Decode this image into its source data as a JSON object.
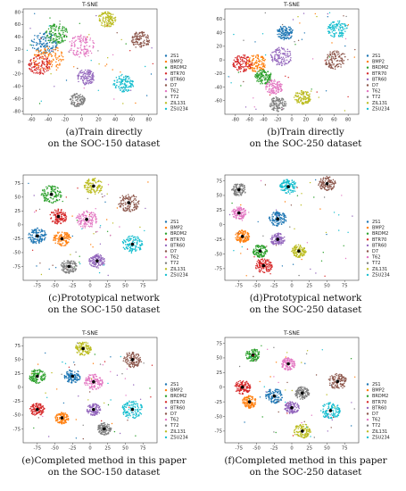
{
  "colors": [
    "#1f77b4",
    "#ff7f0e",
    "#2ca02c",
    "#d62728",
    "#9467bd",
    "#8c564b",
    "#e377c2",
    "#7f7f7f",
    "#bcbd22",
    "#17becf"
  ],
  "legend_labels": [
    "2S1",
    "BMP2",
    "BRDM2",
    "BTR70",
    "BTR60",
    "D7",
    "T62",
    "T72",
    "ZIL131",
    "ZSU234"
  ],
  "chart_data": [
    {
      "type": "scatter",
      "title": "T-SNE",
      "caption_line1": "(a)Train directly",
      "caption_line2": "on the SOC-150 dataset",
      "xlim": [
        -70,
        90
      ],
      "ylim": [
        -85,
        85
      ],
      "xticks": [
        -60,
        -40,
        -20,
        0,
        20,
        40,
        60,
        80
      ],
      "yticks": [
        -80,
        -60,
        -40,
        -20,
        0,
        20,
        40,
        60,
        80
      ],
      "prototypes": false,
      "clusters": [
        {
          "series": "2S1",
          "x": -45,
          "y": 30,
          "r": 20
        },
        {
          "series": "BMP2",
          "x": -40,
          "y": 5,
          "r": 24
        },
        {
          "series": "BRDM2",
          "x": -30,
          "y": 45,
          "r": 18
        },
        {
          "series": "BTR70",
          "x": -50,
          "y": -5,
          "r": 18
        },
        {
          "series": "BTR60",
          "x": 5,
          "y": -25,
          "r": 14
        },
        {
          "series": "D7",
          "x": 70,
          "y": 35,
          "r": 15
        },
        {
          "series": "T62",
          "x": 0,
          "y": 25,
          "r": 20
        },
        {
          "series": "T72",
          "x": -5,
          "y": -62,
          "r": 12
        },
        {
          "series": "ZIL131",
          "x": 30,
          "y": 68,
          "r": 14
        },
        {
          "series": "ZSU234",
          "x": 50,
          "y": -35,
          "r": 16
        }
      ]
    },
    {
      "type": "scatter",
      "title": "T-SNE",
      "caption_line1": "(b)Train directly",
      "caption_line2": "on the SOC-250 dataset",
      "xlim": [
        -95,
        95
      ],
      "ylim": [
        -80,
        75
      ],
      "xticks": [
        -80,
        -60,
        -40,
        -20,
        0,
        20,
        40,
        60,
        80
      ],
      "yticks": [
        -60,
        -40,
        -20,
        0,
        20,
        40,
        60
      ],
      "prototypes": false,
      "clusters": [
        {
          "series": "2S1",
          "x": -10,
          "y": 40,
          "r": 12
        },
        {
          "series": "BMP2",
          "x": -50,
          "y": -5,
          "r": 14
        },
        {
          "series": "BRDM2",
          "x": -40,
          "y": -25,
          "r": 12
        },
        {
          "series": "BTR70",
          "x": -70,
          "y": -5,
          "r": 14
        },
        {
          "series": "BTR60",
          "x": -15,
          "y": 5,
          "r": 15
        },
        {
          "series": "D7",
          "x": 62,
          "y": 0,
          "r": 16
        },
        {
          "series": "T62",
          "x": -25,
          "y": -40,
          "r": 12
        },
        {
          "series": "T72",
          "x": -20,
          "y": -65,
          "r": 12
        },
        {
          "series": "ZIL131",
          "x": 15,
          "y": -55,
          "r": 12
        },
        {
          "series": "ZSU234",
          "x": 65,
          "y": 45,
          "r": 14
        }
      ]
    },
    {
      "type": "scatter",
      "title": "",
      "caption_line1": "(c)Prototypical network",
      "caption_line2": "on the SOC-150 dataset",
      "xlim": [
        -95,
        95
      ],
      "ylim": [
        -100,
        90
      ],
      "xticks": [
        -75,
        -50,
        -25,
        0,
        25,
        50,
        75
      ],
      "yticks": [
        -75,
        -50,
        -25,
        0,
        25,
        50,
        75
      ],
      "prototypes": true,
      "clusters": [
        {
          "series": "2S1",
          "x": -75,
          "y": -20,
          "r": 16
        },
        {
          "series": "BMP2",
          "x": -40,
          "y": -25,
          "r": 15
        },
        {
          "series": "BRDM2",
          "x": -55,
          "y": 55,
          "r": 18
        },
        {
          "series": "BTR70",
          "x": -45,
          "y": 15,
          "r": 15
        },
        {
          "series": "BTR60",
          "x": 10,
          "y": -65,
          "r": 14
        },
        {
          "series": "D7",
          "x": 55,
          "y": 40,
          "r": 18
        },
        {
          "series": "T62",
          "x": -5,
          "y": 10,
          "r": 18
        },
        {
          "series": "T72",
          "x": -30,
          "y": -75,
          "r": 14
        },
        {
          "series": "ZIL131",
          "x": 5,
          "y": 70,
          "r": 16
        },
        {
          "series": "ZSU234",
          "x": 60,
          "y": -35,
          "r": 18
        }
      ]
    },
    {
      "type": "scatter",
      "title": "",
      "caption_line1": "(d)Prototypical network",
      "caption_line2": "on the SOC-250 dataset",
      "xlim": [
        -95,
        95
      ],
      "ylim": [
        -95,
        85
      ],
      "xticks": [
        -75,
        -50,
        -25,
        0,
        25,
        50,
        75
      ],
      "yticks": [
        -75,
        -50,
        -25,
        0,
        25,
        50,
        75
      ],
      "prototypes": true,
      "clusters": [
        {
          "series": "2S1",
          "x": -20,
          "y": 10,
          "r": 14
        },
        {
          "series": "BMP2",
          "x": -70,
          "y": -20,
          "r": 12
        },
        {
          "series": "BRDM2",
          "x": -45,
          "y": -45,
          "r": 12
        },
        {
          "series": "BTR70",
          "x": -40,
          "y": -70,
          "r": 14
        },
        {
          "series": "BTR60",
          "x": -20,
          "y": -25,
          "r": 12
        },
        {
          "series": "D7",
          "x": 50,
          "y": 70,
          "r": 14
        },
        {
          "series": "T62",
          "x": -75,
          "y": 20,
          "r": 12
        },
        {
          "series": "T72",
          "x": -75,
          "y": 60,
          "r": 12
        },
        {
          "series": "ZIL131",
          "x": 10,
          "y": -45,
          "r": 12
        },
        {
          "series": "ZSU234",
          "x": -5,
          "y": 65,
          "r": 14
        }
      ]
    },
    {
      "type": "scatter",
      "title": "T-SNE",
      "caption_line1": "(e)Completed method in this paper",
      "caption_line2": "on the SOC-150 dataset",
      "xlim": [
        -95,
        95
      ],
      "ylim": [
        -100,
        90
      ],
      "xticks": [
        -75,
        -50,
        -25,
        0,
        25,
        50,
        75
      ],
      "yticks": [
        -75,
        -50,
        -25,
        0,
        25,
        50,
        75
      ],
      "prototypes": true,
      "clusters": [
        {
          "series": "2S1",
          "x": -25,
          "y": 20,
          "r": 14
        },
        {
          "series": "BMP2",
          "x": -40,
          "y": -55,
          "r": 12
        },
        {
          "series": "BRDM2",
          "x": -75,
          "y": 20,
          "r": 14
        },
        {
          "series": "BTR70",
          "x": -75,
          "y": -40,
          "r": 13
        },
        {
          "series": "BTR60",
          "x": 5,
          "y": -40,
          "r": 12
        },
        {
          "series": "D7",
          "x": 60,
          "y": 50,
          "r": 16
        },
        {
          "series": "T62",
          "x": 5,
          "y": 10,
          "r": 16
        },
        {
          "series": "T72",
          "x": 20,
          "y": -75,
          "r": 12
        },
        {
          "series": "ZIL131",
          "x": -10,
          "y": 70,
          "r": 14
        },
        {
          "series": "ZSU234",
          "x": 60,
          "y": -40,
          "r": 18
        }
      ]
    },
    {
      "type": "scatter",
      "title": "T-SNE",
      "caption_line1": "(f)Completed method in this paper",
      "caption_line2": "on the SOC-250 dataset",
      "xlim": [
        -95,
        95
      ],
      "ylim": [
        -95,
        85
      ],
      "xticks": [
        -75,
        -50,
        -25,
        0,
        25,
        50,
        75
      ],
      "yticks": [
        -75,
        -50,
        -25,
        0,
        25,
        50,
        75
      ],
      "prototypes": true,
      "clusters": [
        {
          "series": "2S1",
          "x": -25,
          "y": -15,
          "r": 14
        },
        {
          "series": "BMP2",
          "x": -60,
          "y": -25,
          "r": 12
        },
        {
          "series": "BRDM2",
          "x": -55,
          "y": 55,
          "r": 12
        },
        {
          "series": "BTR70",
          "x": -70,
          "y": 0,
          "r": 13
        },
        {
          "series": "BTR60",
          "x": 0,
          "y": -35,
          "r": 12
        },
        {
          "series": "D7",
          "x": 65,
          "y": 10,
          "r": 15
        },
        {
          "series": "T62",
          "x": -5,
          "y": 40,
          "r": 12
        },
        {
          "series": "T72",
          "x": 15,
          "y": -10,
          "r": 12
        },
        {
          "series": "ZIL131",
          "x": 15,
          "y": -75,
          "r": 14
        },
        {
          "series": "ZSU234",
          "x": 55,
          "y": -40,
          "r": 16
        }
      ]
    }
  ]
}
